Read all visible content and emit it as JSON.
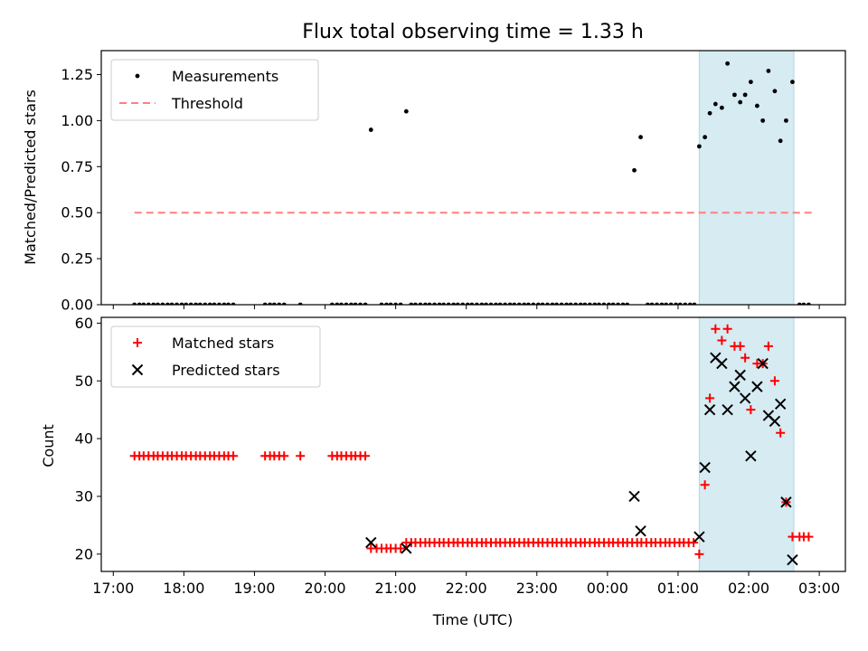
{
  "chart_data": [
    {
      "type": "scatter",
      "title": "Flux total observing time = 1.33 h",
      "ylabel": "Matched/Predicted stars",
      "xlim": [
        16.83,
        27.37
      ],
      "ylim": [
        0,
        1.38
      ],
      "yticks": [
        0.0,
        0.25,
        0.5,
        0.75,
        1.0,
        1.25
      ],
      "ytick_labels": [
        "0.00",
        "0.25",
        "0.50",
        "0.75",
        "1.00",
        "1.25"
      ],
      "xticks": [
        17,
        18,
        19,
        20,
        21,
        22,
        23,
        24,
        25,
        26,
        27
      ],
      "highlight_span": [
        25.3,
        26.64
      ],
      "legend": {
        "location": "top-left",
        "entries": [
          "Measurements",
          "Threshold"
        ]
      },
      "series": [
        {
          "name": "Measurements",
          "color": "#000000",
          "x": [
            17.3,
            17.37,
            17.43,
            17.5,
            17.57,
            17.63,
            17.7,
            17.77,
            17.83,
            17.9,
            17.97,
            18.03,
            18.1,
            18.17,
            18.23,
            18.3,
            18.37,
            18.43,
            18.5,
            18.57,
            18.63,
            18.7,
            19.15,
            19.22,
            19.28,
            19.35,
            19.42,
            19.65,
            20.1,
            20.17,
            20.23,
            20.3,
            20.37,
            20.43,
            20.5,
            20.57,
            20.65,
            20.8,
            20.87,
            20.93,
            21.0,
            21.07,
            21.15,
            21.22,
            21.28,
            21.35,
            21.42,
            21.48,
            21.55,
            21.62,
            21.68,
            21.75,
            21.82,
            21.88,
            21.95,
            22.02,
            22.08,
            22.15,
            22.22,
            22.28,
            22.35,
            22.42,
            22.48,
            22.55,
            22.62,
            22.68,
            22.75,
            22.82,
            22.88,
            22.95,
            23.02,
            23.08,
            23.15,
            23.22,
            23.28,
            23.35,
            23.42,
            23.48,
            23.55,
            23.62,
            23.68,
            23.75,
            23.82,
            23.88,
            23.95,
            24.02,
            24.08,
            24.15,
            24.22,
            24.28,
            24.38,
            24.47,
            24.57,
            24.63,
            24.7,
            24.77,
            24.83,
            24.9,
            24.97,
            25.03,
            25.1,
            25.17,
            25.23,
            25.3,
            25.38,
            25.45,
            25.53,
            25.62,
            25.7,
            25.8,
            25.88,
            25.95,
            26.03,
            26.12,
            26.2,
            26.28,
            26.37,
            26.45,
            26.53,
            26.62,
            26.72,
            26.78,
            26.85
          ],
          "y": [
            0,
            0,
            0,
            0,
            0,
            0,
            0,
            0,
            0,
            0,
            0,
            0,
            0,
            0,
            0,
            0,
            0,
            0,
            0,
            0,
            0,
            0,
            0,
            0,
            0,
            0,
            0,
            0,
            0,
            0,
            0,
            0,
            0,
            0,
            0,
            0,
            0.95,
            0,
            0,
            0,
            0,
            0,
            1.05,
            0,
            0,
            0,
            0,
            0,
            0,
            0,
            0,
            0,
            0,
            0,
            0,
            0,
            0,
            0,
            0,
            0,
            0,
            0,
            0,
            0,
            0,
            0,
            0,
            0,
            0,
            0,
            0,
            0,
            0,
            0,
            0,
            0,
            0,
            0,
            0,
            0,
            0,
            0,
            0,
            0,
            0,
            0,
            0,
            0,
            0,
            0,
            0.73,
            0.91,
            0,
            0,
            0,
            0,
            0,
            0,
            0,
            0,
            0,
            0,
            0,
            0.86,
            0.91,
            1.04,
            1.09,
            1.07,
            1.31,
            1.14,
            1.1,
            1.14,
            1.21,
            1.08,
            1.0,
            1.27,
            1.16,
            0.89,
            1.0,
            1.21,
            0,
            0,
            0
          ]
        },
        {
          "name": "Threshold",
          "color": "#ff7f7f",
          "x": [
            17.3,
            26.93
          ],
          "y": [
            0.5,
            0.5
          ]
        }
      ]
    },
    {
      "type": "scatter",
      "ylabel": "Count",
      "xlabel": "Time (UTC)",
      "xlim": [
        16.83,
        27.37
      ],
      "ylim": [
        17,
        61
      ],
      "yticks": [
        20,
        30,
        40,
        50,
        60
      ],
      "ytick_labels": [
        "20",
        "30",
        "40",
        "50",
        "60"
      ],
      "xticks": [
        17,
        18,
        19,
        20,
        21,
        22,
        23,
        24,
        25,
        26,
        27
      ],
      "xtick_labels": [
        "17:00",
        "18:00",
        "19:00",
        "20:00",
        "21:00",
        "22:00",
        "23:00",
        "00:00",
        "01:00",
        "02:00",
        "03:00"
      ],
      "highlight_span": [
        25.3,
        26.64
      ],
      "legend": {
        "location": "top-left",
        "entries": [
          "Matched stars",
          "Predicted stars"
        ]
      },
      "series": [
        {
          "name": "Matched stars",
          "color": "#ff0000",
          "x": [
            17.3,
            17.37,
            17.43,
            17.5,
            17.57,
            17.63,
            17.7,
            17.77,
            17.83,
            17.9,
            17.97,
            18.03,
            18.1,
            18.17,
            18.23,
            18.3,
            18.37,
            18.43,
            18.5,
            18.57,
            18.63,
            18.7,
            19.15,
            19.22,
            19.28,
            19.35,
            19.42,
            19.65,
            20.1,
            20.17,
            20.23,
            20.3,
            20.37,
            20.43,
            20.5,
            20.57,
            20.65,
            20.73,
            20.8,
            20.87,
            20.93,
            21.0,
            21.07,
            21.15,
            21.22,
            21.28,
            21.35,
            21.42,
            21.48,
            21.55,
            21.62,
            21.68,
            21.75,
            21.82,
            21.88,
            21.95,
            22.02,
            22.08,
            22.15,
            22.22,
            22.28,
            22.35,
            22.42,
            22.48,
            22.55,
            22.62,
            22.68,
            22.75,
            22.82,
            22.88,
            22.95,
            23.02,
            23.08,
            23.15,
            23.22,
            23.28,
            23.35,
            23.42,
            23.48,
            23.55,
            23.62,
            23.68,
            23.75,
            23.82,
            23.88,
            23.95,
            24.02,
            24.08,
            24.15,
            24.22,
            24.28,
            24.35,
            24.42,
            24.48,
            24.55,
            24.62,
            24.68,
            24.75,
            24.82,
            24.88,
            24.95,
            25.02,
            25.08,
            25.15,
            25.22,
            25.3,
            25.38,
            25.45,
            25.53,
            25.62,
            25.7,
            25.8,
            25.88,
            25.95,
            26.03,
            26.12,
            26.2,
            26.28,
            26.37,
            26.45,
            26.53,
            26.62,
            26.72,
            26.78,
            26.85
          ],
          "y": [
            37,
            37,
            37,
            37,
            37,
            37,
            37,
            37,
            37,
            37,
            37,
            37,
            37,
            37,
            37,
            37,
            37,
            37,
            37,
            37,
            37,
            37,
            37,
            37,
            37,
            37,
            37,
            37,
            37,
            37,
            37,
            37,
            37,
            37,
            37,
            37,
            21,
            21,
            21,
            21,
            21,
            21,
            21,
            22,
            22,
            22,
            22,
            22,
            22,
            22,
            22,
            22,
            22,
            22,
            22,
            22,
            22,
            22,
            22,
            22,
            22,
            22,
            22,
            22,
            22,
            22,
            22,
            22,
            22,
            22,
            22,
            22,
            22,
            22,
            22,
            22,
            22,
            22,
            22,
            22,
            22,
            22,
            22,
            22,
            22,
            22,
            22,
            22,
            22,
            22,
            22,
            22,
            22,
            22,
            22,
            22,
            22,
            22,
            22,
            22,
            22,
            22,
            22,
            22,
            22,
            20,
            32,
            47,
            59,
            57,
            59,
            56,
            56,
            54,
            45,
            53,
            53,
            56,
            50,
            41,
            29,
            23,
            23,
            23,
            23
          ]
        },
        {
          "name": "Predicted stars",
          "color": "#000000",
          "x": [
            20.65,
            21.15,
            24.38,
            24.47,
            25.3,
            25.38,
            25.45,
            25.53,
            25.62,
            25.7,
            25.8,
            25.88,
            25.95,
            26.03,
            26.12,
            26.2,
            26.28,
            26.37,
            26.45,
            26.53,
            26.62
          ],
          "y": [
            22,
            21,
            30,
            24,
            23,
            35,
            45,
            54,
            53,
            45,
            49,
            51,
            47,
            37,
            49,
            53,
            44,
            43,
            46,
            29,
            19
          ]
        }
      ]
    }
  ]
}
